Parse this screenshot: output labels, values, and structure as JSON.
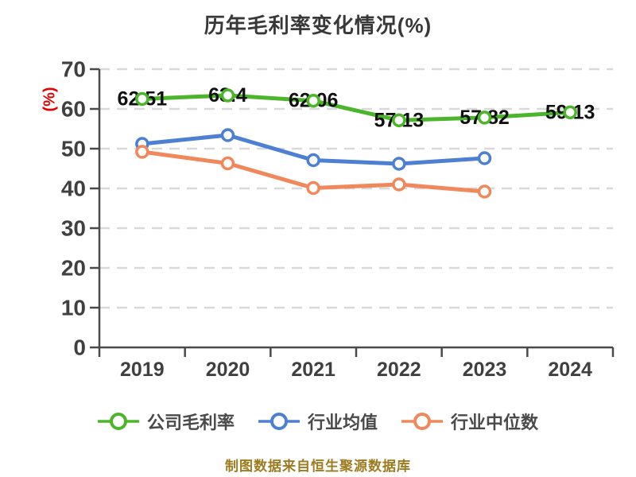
{
  "title": "历年毛利率变化情况(%)",
  "y_axis_unit_label": "(%)",
  "footer_note": "制图数据来自恒生聚源数据库",
  "colors": {
    "title": "#383838",
    "axis": "#4a4a4a",
    "tick_label": "#404040",
    "grid": "#d9d9d9",
    "unit_label": "#e60000",
    "data_label": "#111111",
    "legend_text": "#4a4a4a",
    "footer": "#9d7b1f"
  },
  "chart_data": {
    "type": "line",
    "title": "历年毛利率变化情况(%)",
    "xlabel": "",
    "ylabel": "(%)",
    "categories": [
      "2019",
      "2020",
      "2021",
      "2022",
      "2023",
      "2024"
    ],
    "ylim": [
      0,
      70
    ],
    "yticks": [
      0,
      10,
      20,
      30,
      40,
      50,
      60,
      70
    ],
    "grid": "horizontal-dashed",
    "legend_position": "bottom",
    "series": [
      {
        "key": "company-gross-margin",
        "name": "公司毛利率",
        "color": "#4db52b",
        "values": [
          62.51,
          63.4,
          62.06,
          57.13,
          57.82,
          59.13
        ],
        "data_labels": [
          "62.51",
          "63.4",
          "62.06",
          "57.13",
          "57.82",
          "59.13"
        ],
        "show_labels": true
      },
      {
        "key": "industry-mean",
        "name": "行业均值",
        "color": "#4d7fd3",
        "values": [
          51.2,
          53.4,
          47.1,
          46.2,
          47.6,
          null
        ],
        "show_labels": false
      },
      {
        "key": "industry-median",
        "name": "行业中位数",
        "color": "#f0885c",
        "values": [
          49.2,
          46.3,
          40.1,
          41.0,
          39.2,
          null
        ],
        "show_labels": false
      }
    ]
  }
}
